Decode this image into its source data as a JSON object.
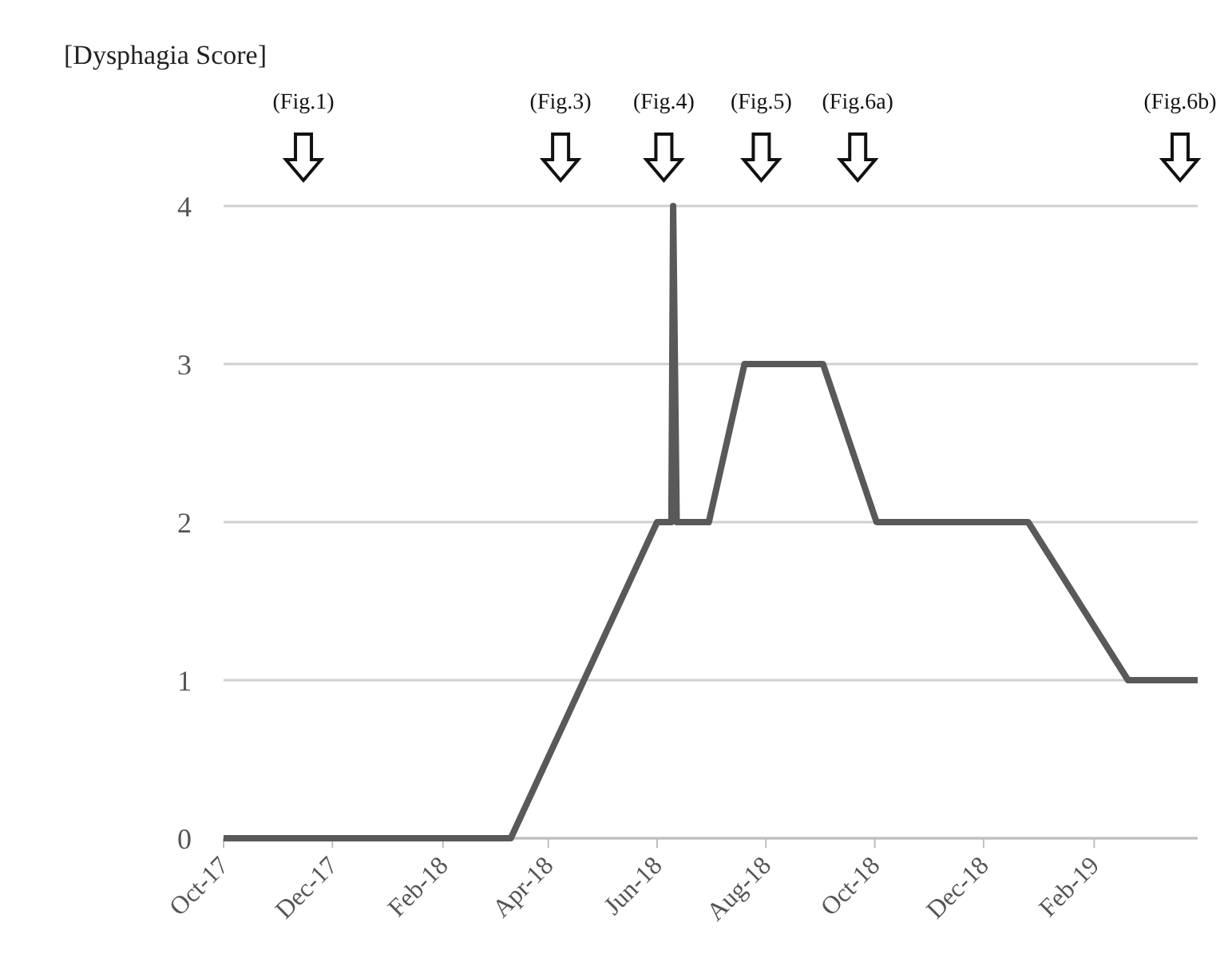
{
  "chart_data": {
    "type": "line",
    "ylabel": "[Dysphagia Score]",
    "series": [
      {
        "color": "#595959",
        "x": [
          "2017-10-01",
          "2018-03-11",
          "2018-06-01",
          "2018-06-09",
          "2018-06-10",
          "2018-06-12",
          "2018-06-30",
          "2018-07-20",
          "2018-09-02",
          "2018-10-02",
          "2018-12-26",
          "2019-02-20",
          "2019-03-31"
        ],
        "values": [
          0,
          0,
          2,
          2,
          4,
          2,
          2,
          3,
          3,
          2,
          2,
          1,
          1
        ]
      }
    ],
    "xlim": [
      "2017-10-01",
      "2019-03-31"
    ],
    "xticks": [
      {
        "value": "2017-10-01",
        "label": "Oct-17"
      },
      {
        "value": "2017-12-01",
        "label": "Dec-17"
      },
      {
        "value": "2018-02-01",
        "label": "Feb-18"
      },
      {
        "value": "2018-04-01",
        "label": "Apr-18"
      },
      {
        "value": "2018-06-01",
        "label": "Jun-18"
      },
      {
        "value": "2018-08-01",
        "label": "Aug-18"
      },
      {
        "value": "2018-10-01",
        "label": "Oct-18"
      },
      {
        "value": "2018-12-01",
        "label": "Dec-18"
      },
      {
        "value": "2019-02-01",
        "label": "Feb-19"
      }
    ],
    "ylim": [
      0,
      4
    ],
    "yticks": [
      0,
      1,
      2,
      3,
      4
    ],
    "grid": "y",
    "marker": "none",
    "line_style": "solid",
    "annotations": [
      "(Fig.1)",
      "(Fig.3)",
      "(Fig.4)",
      "(Fig.5)",
      "(Fig.6a)",
      "(Fig.6b)"
    ]
  }
}
